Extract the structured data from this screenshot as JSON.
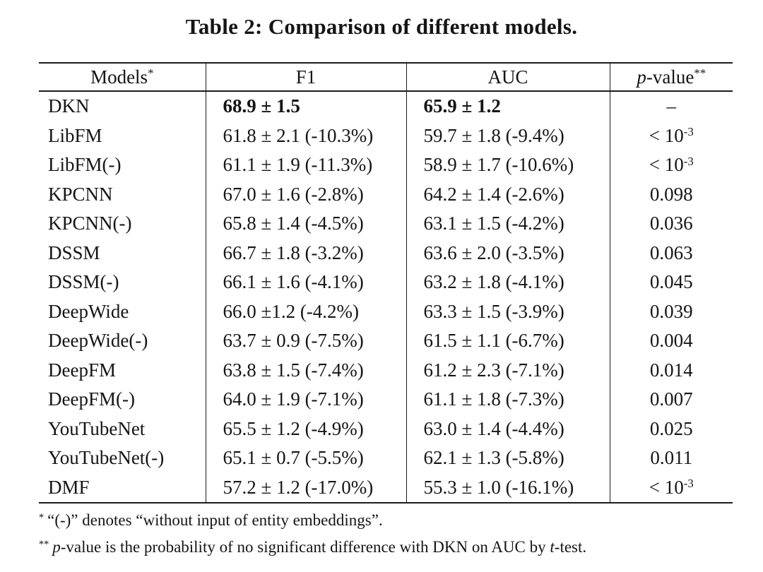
{
  "caption": "Table 2: Comparison of different models.",
  "table": {
    "header": {
      "models": {
        "label": "Models",
        "sup": "*"
      },
      "f1": {
        "label": "F1"
      },
      "auc": {
        "label": "AUC"
      },
      "pvalue": {
        "italic": "p",
        "label": "-value",
        "sup": "**"
      }
    },
    "rows": [
      {
        "model": "DKN",
        "f1": "68.9 ± 1.5",
        "auc": "65.9 ± 1.2",
        "pvalue": "–",
        "bold": true
      },
      {
        "model": "LibFM",
        "f1": "61.8 ± 2.1 (-10.3%)",
        "auc": "59.7 ± 1.8 (-9.4%)",
        "pvalue": "< 10",
        "pvalue_sup": "-3"
      },
      {
        "model": "LibFM(-)",
        "f1": "61.1 ± 1.9 (-11.3%)",
        "auc": "58.9 ± 1.7 (-10.6%)",
        "pvalue": "< 10",
        "pvalue_sup": "-3"
      },
      {
        "model": "KPCNN",
        "f1": "67.0 ± 1.6 (-2.8%)",
        "auc": "64.2 ± 1.4 (-2.6%)",
        "pvalue": "0.098"
      },
      {
        "model": "KPCNN(-)",
        "f1": "65.8 ± 1.4 (-4.5%)",
        "auc": "63.1 ± 1.5 (-4.2%)",
        "pvalue": "0.036"
      },
      {
        "model": "DSSM",
        "f1": "66.7 ± 1.8 (-3.2%)",
        "auc": "63.6 ± 2.0 (-3.5%)",
        "pvalue": "0.063"
      },
      {
        "model": "DSSM(-)",
        "f1": "66.1 ± 1.6 (-4.1%)",
        "auc": "63.2 ± 1.8 (-4.1%)",
        "pvalue": "0.045"
      },
      {
        "model": "DeepWide",
        "f1": "66.0 ±1.2 (-4.2%)",
        "auc": "63.3 ± 1.5 (-3.9%)",
        "pvalue": "0.039"
      },
      {
        "model": "DeepWide(-)",
        "f1": "63.7 ± 0.9 (-7.5%)",
        "auc": "61.5 ± 1.1 (-6.7%)",
        "pvalue": "0.004"
      },
      {
        "model": "DeepFM",
        "f1": "63.8 ± 1.5 (-7.4%)",
        "auc": "61.2 ± 2.3 (-7.1%)",
        "pvalue": "0.014"
      },
      {
        "model": "DeepFM(-)",
        "f1": "64.0 ± 1.9 (-7.1%)",
        "auc": "61.1 ± 1.8 (-7.3%)",
        "pvalue": "0.007"
      },
      {
        "model": "YouTubeNet",
        "f1": "65.5 ± 1.2 (-4.9%)",
        "auc": "63.0 ± 1.4 (-4.4%)",
        "pvalue": "0.025"
      },
      {
        "model": "YouTubeNet(-)",
        "f1": "65.1 ± 0.7 (-5.5%)",
        "auc": "62.1 ± 1.3 (-5.8%)",
        "pvalue": "0.011"
      },
      {
        "model": "DMF",
        "f1": "57.2 ± 1.2 (-17.0%)",
        "auc": "55.3 ± 1.0 (-16.1%)",
        "pvalue": "< 10",
        "pvalue_sup": "-3"
      }
    ]
  },
  "footnotes": [
    {
      "marker": "*",
      "segments": [
        {
          "t": "“(-)” denotes “without input of entity embeddings”."
        }
      ]
    },
    {
      "marker": "**",
      "segments": [
        {
          "t": "p",
          "i": true
        },
        {
          "t": "-value is the probability of no significant difference with DKN on AUC by "
        },
        {
          "t": "t",
          "i": true
        },
        {
          "t": "-test."
        }
      ]
    }
  ]
}
